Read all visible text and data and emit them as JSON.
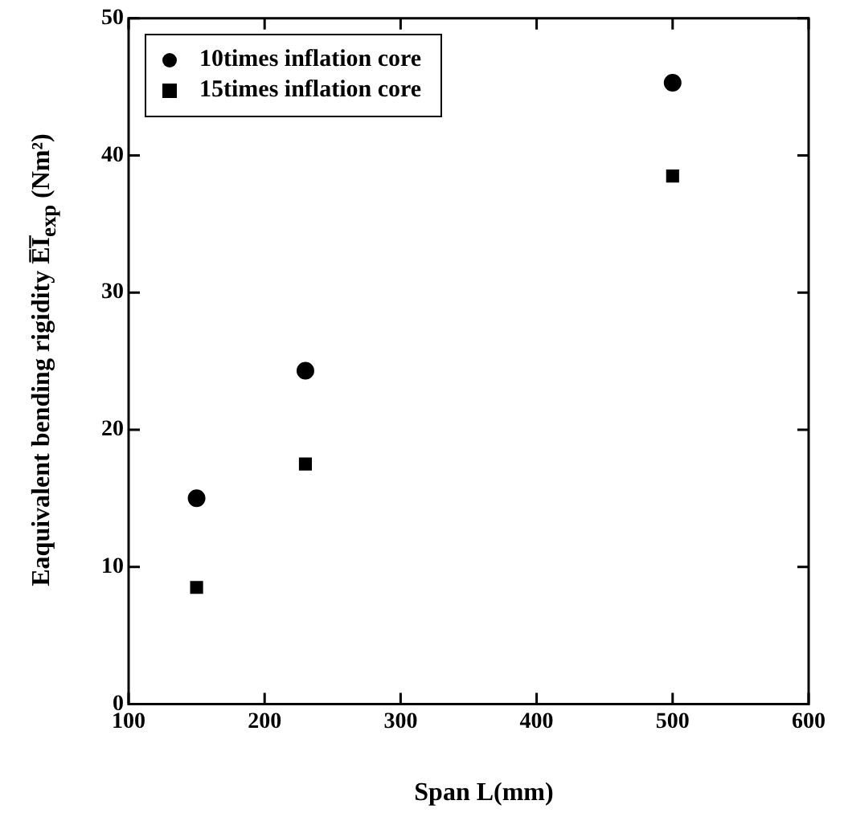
{
  "chart_data": {
    "type": "scatter",
    "xlabel": "Span L(mm)",
    "ylabel": "Eaquivalent bending rigidity E̅I̅$_{exp}$  (Nm²)",
    "xlim": [
      100,
      600
    ],
    "xticks": [
      100,
      200,
      300,
      400,
      500,
      600
    ],
    "ylim": [
      0,
      50
    ],
    "yticks": [
      0,
      10,
      20,
      30,
      40,
      50
    ],
    "grid": false,
    "legend": "top left",
    "series": [
      {
        "name": "10times inflation core",
        "color": "#000000",
        "marker": "circle",
        "x": [
          150,
          230,
          500
        ],
        "values": [
          15,
          24.3,
          45.3
        ]
      },
      {
        "name": "15times inflation core",
        "color": "#000000",
        "marker": "square",
        "x": [
          150,
          230,
          500
        ],
        "values": [
          8.5,
          17.5,
          38.5
        ]
      }
    ]
  }
}
